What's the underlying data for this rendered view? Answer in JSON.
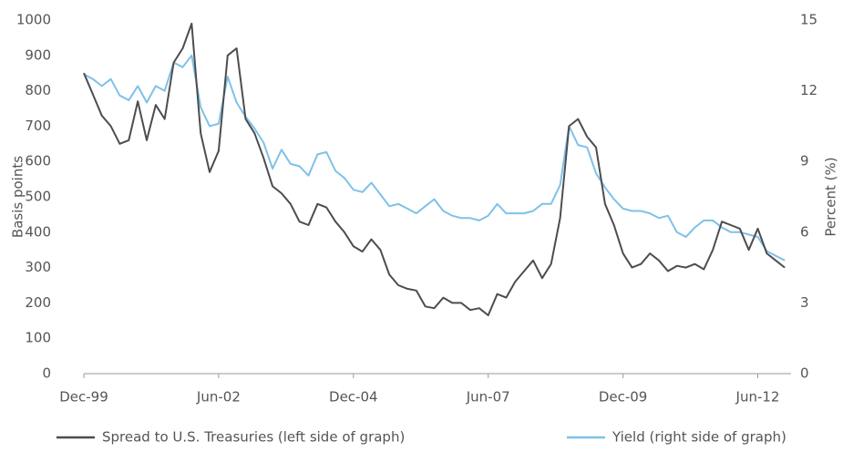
{
  "chart_data": {
    "type": "line",
    "categories": [
      "Dec-99",
      null,
      null,
      null,
      null,
      null,
      null,
      null,
      null,
      null,
      null,
      null,
      null,
      null,
      null,
      "Jun-02",
      null,
      null,
      null,
      null,
      null,
      null,
      null,
      null,
      null,
      null,
      null,
      null,
      null,
      null,
      "Dec-04",
      null,
      null,
      null,
      null,
      null,
      null,
      null,
      null,
      null,
      null,
      null,
      null,
      null,
      null,
      "Jun-07",
      null,
      null,
      null,
      null,
      null,
      null,
      null,
      null,
      null,
      null,
      null,
      null,
      null,
      null,
      "Dec-09",
      null,
      null,
      null,
      null,
      null,
      null,
      null,
      null,
      null,
      null,
      null,
      null,
      null,
      null,
      "Jun-12",
      null,
      null,
      null
    ],
    "series": [
      {
        "name": "Spread to U.S. Treasuries (left side of graph)",
        "color": "#4d4d4f",
        "axis": "y",
        "values": [
          850,
          790,
          730,
          700,
          650,
          660,
          770,
          660,
          760,
          720,
          880,
          920,
          990,
          680,
          570,
          630,
          900,
          920,
          720,
          680,
          610,
          530,
          510,
          480,
          430,
          420,
          480,
          470,
          430,
          400,
          360,
          345,
          380,
          350,
          280,
          250,
          240,
          235,
          190,
          185,
          215,
          200,
          200,
          180,
          185,
          165,
          225,
          215,
          260,
          290,
          320,
          270,
          310,
          440,
          700,
          720,
          670,
          640,
          480,
          420,
          340,
          300,
          310,
          340,
          320,
          290,
          305,
          300,
          310,
          295,
          350,
          430,
          420,
          410,
          350,
          410,
          340,
          320,
          300
        ]
      },
      {
        "name": "Yield (right side of graph)",
        "color": "#7fc1e8",
        "axis": "y2",
        "values": [
          12.7,
          12.5,
          12.2,
          12.5,
          11.8,
          11.6,
          12.2,
          11.5,
          12.2,
          12.0,
          13.2,
          13.0,
          13.5,
          11.3,
          10.5,
          10.6,
          12.6,
          11.5,
          10.9,
          10.4,
          9.8,
          8.7,
          9.5,
          8.9,
          8.8,
          8.4,
          9.3,
          9.4,
          8.6,
          8.3,
          7.8,
          7.7,
          8.1,
          7.6,
          7.1,
          7.2,
          7.0,
          6.8,
          7.1,
          7.4,
          6.9,
          6.7,
          6.6,
          6.6,
          6.5,
          6.7,
          7.2,
          6.8,
          6.8,
          6.8,
          6.9,
          7.2,
          7.2,
          8.0,
          10.5,
          9.7,
          9.6,
          8.5,
          7.9,
          7.4,
          7.0,
          6.9,
          6.9,
          6.8,
          6.6,
          6.7,
          6.0,
          5.8,
          6.2,
          6.5,
          6.5,
          6.2,
          6.0,
          6.0,
          5.9,
          5.8,
          5.2,
          5.0,
          4.8
        ]
      }
    ],
    "ylabel": "Basis points",
    "y2label": "Percent (%)",
    "ylim": [
      0,
      1000
    ],
    "yticks": [
      0,
      100,
      200,
      300,
      400,
      500,
      600,
      700,
      800,
      900,
      1000
    ],
    "y2lim": [
      0,
      15
    ],
    "y2ticks": [
      0,
      3,
      6,
      9,
      12,
      15
    ],
    "grid": false
  }
}
